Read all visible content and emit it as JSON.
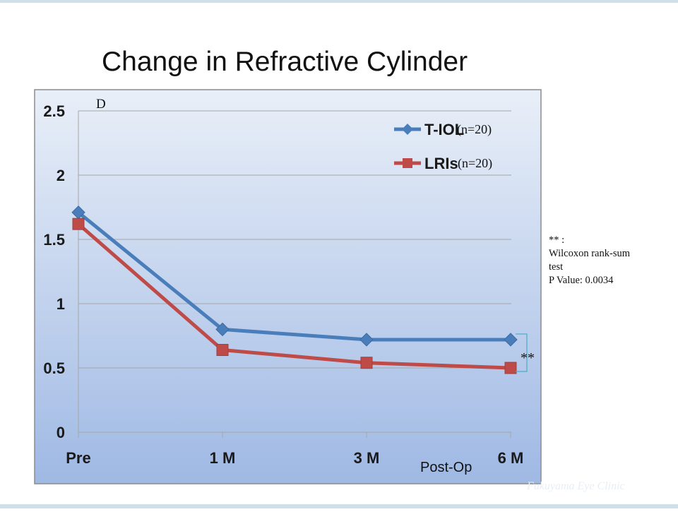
{
  "slide": {
    "title": "Change in Refractive Cylinder",
    "watermark": "Fukuyama Eye Clinic"
  },
  "note": {
    "line1": "** :",
    "line2": "Wilcoxon rank-sum",
    "line3": "test",
    "line4": "P Value: 0.0034"
  },
  "chart_data": {
    "type": "line",
    "categories": [
      "Pre",
      "1 M",
      "3 M",
      "6 M"
    ],
    "series": [
      {
        "name": "T-IOL",
        "n_label": "(n=20)",
        "values": [
          1.71,
          0.8,
          0.72,
          0.72
        ],
        "color": "#4a7ebb",
        "marker": "diamond"
      },
      {
        "name": "LRIs",
        "n_label": "(n=20)",
        "values": [
          1.62,
          0.64,
          0.54,
          0.5
        ],
        "color": "#be4b48",
        "marker": "square"
      }
    ],
    "ylabel": "D",
    "xlabel": "Post-Op",
    "ylim": [
      0,
      2.5
    ],
    "yticks": [
      0,
      0.5,
      1,
      1.5,
      2,
      2.5
    ],
    "ytick_labels": [
      "0",
      "0.5",
      "1",
      "1.5",
      "2",
      "2.5"
    ],
    "grid": true,
    "legend": "top-right",
    "significance_label": "**",
    "colors": {
      "gridline": "#a6a6a6",
      "bg_top": "#e9eff8",
      "bg_bottom": "#9fb9e4",
      "bracket": "#4bacc6"
    }
  }
}
